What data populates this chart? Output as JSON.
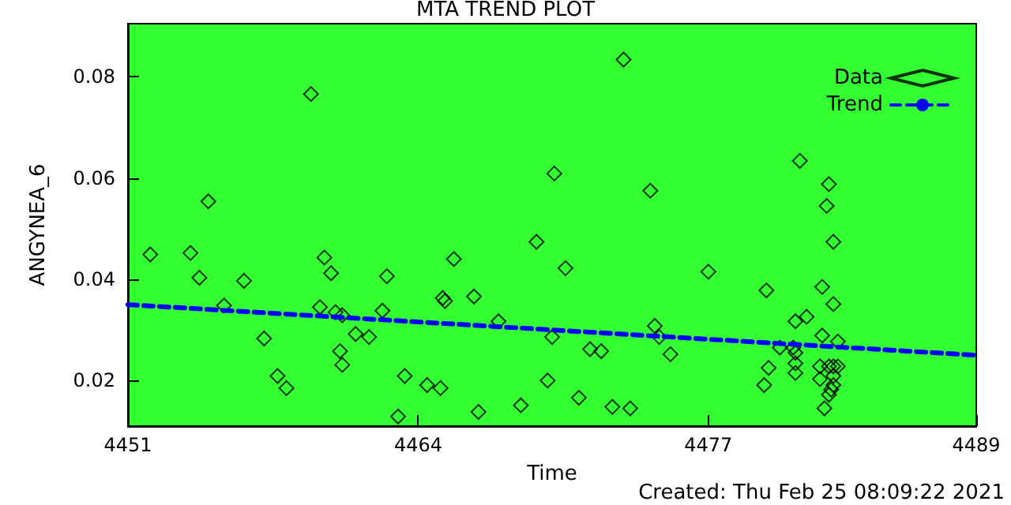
{
  "chart_data": {
    "type": "scatter",
    "title": "MTA TREND PLOT",
    "xlabel": "Time",
    "ylabel": "ANGYNEA_6",
    "annotations": [
      "Created: Thu Feb 25 08:09:22 2021"
    ],
    "xlim": [
      4451,
      4489
    ],
    "xticks": [
      4451,
      4464,
      4477,
      4489
    ],
    "ylim": [
      0.011,
      0.0905
    ],
    "yticks": [
      0.02,
      0.04,
      0.06,
      0.08
    ],
    "grid": false,
    "legend": "top right",
    "series": [
      {
        "name": "Data",
        "marker": "diamond",
        "color": "#000000",
        "x": [
          4452.0,
          4453.8,
          4454.2,
          4454.6,
          4455.3,
          4456.2,
          4457.1,
          4457.7,
          4458.1,
          4459.2,
          4459.6,
          4459.8,
          4460.1,
          4460.3,
          4460.5,
          4460.6,
          4460.6,
          4461.2,
          4461.8,
          4462.4,
          4462.6,
          4463.1,
          4463.4,
          4464.4,
          4465.0,
          4465.1,
          4465.2,
          4465.6,
          4466.5,
          4466.7,
          4467.6,
          4468.6,
          4469.3,
          4469.8,
          4470.0,
          4470.1,
          4470.6,
          4471.2,
          4471.7,
          4472.2,
          4472.7,
          4473.2,
          4473.5,
          4474.4,
          4474.6,
          4474.8,
          4475.3,
          4477.0,
          4479.6,
          4479.5,
          4479.7,
          4480.2,
          4480.9,
          4481.4,
          4480.8,
          4480.9,
          4480.9,
          4480.9,
          4481.1,
          4482.4,
          4482.3,
          4482.6,
          4482.1,
          4482.6,
          4482.1,
          4482.8,
          4482.0,
          4482.0,
          4482.4,
          4482.6,
          4482.8,
          4482.6,
          4482.6,
          4482.5,
          4482.4,
          4482.2
        ],
        "values": [
          0.0449,
          0.0452,
          0.0403,
          0.0554,
          0.0348,
          0.0397,
          0.0283,
          0.0209,
          0.0185,
          0.0766,
          0.0345,
          0.0443,
          0.0412,
          0.0335,
          0.0258,
          0.0329,
          0.0231,
          0.0292,
          0.0286,
          0.0338,
          0.0406,
          0.0129,
          0.0209,
          0.0191,
          0.0185,
          0.0363,
          0.0357,
          0.044,
          0.0366,
          0.0138,
          0.0317,
          0.0151,
          0.0474,
          0.02,
          0.0286,
          0.0609,
          0.0422,
          0.0166,
          0.0262,
          0.0258,
          0.0148,
          0.0834,
          0.0145,
          0.0575,
          0.0308,
          0.0286,
          0.0252,
          0.0415,
          0.0378,
          0.0191,
          0.0225,
          0.0265,
          0.0317,
          0.0326,
          0.0265,
          0.0255,
          0.0234,
          0.0215,
          0.0634,
          0.0588,
          0.0545,
          0.0474,
          0.0385,
          0.0351,
          0.0289,
          0.0277,
          0.0228,
          0.0203,
          0.0228,
          0.0228,
          0.0228,
          0.0209,
          0.0191,
          0.0182,
          0.0172,
          0.0145
        ]
      },
      {
        "name": "Trend",
        "type": "line",
        "marker": "none",
        "line_style": "dashed",
        "color": "#0000ff",
        "x": [
          4451,
          4489
        ],
        "values": [
          0.035,
          0.025
        ]
      }
    ]
  }
}
